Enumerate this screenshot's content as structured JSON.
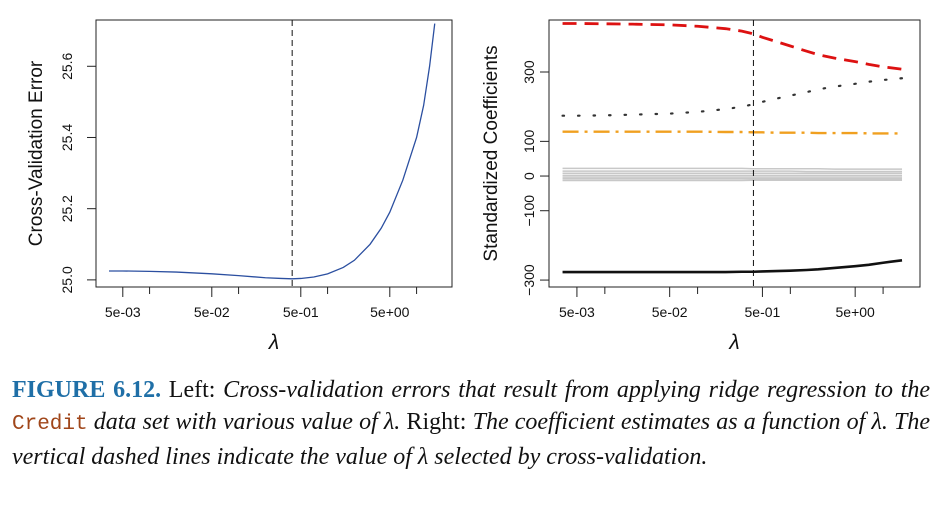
{
  "chart_data": [
    {
      "type": "line",
      "title": "",
      "xlabel": "λ",
      "ylabel": "Cross-Validation Error",
      "x_scale": "log",
      "xlim": [
        0.0025,
        25
      ],
      "ylim": [
        24.98,
        25.73
      ],
      "x_ticks": [
        {
          "value": 0.005,
          "label": "5e-03"
        },
        {
          "value": 0.05,
          "label": "5e-02"
        },
        {
          "value": 0.5,
          "label": "5e-01"
        },
        {
          "value": 5,
          "label": "5e+00"
        }
      ],
      "y_ticks": [
        {
          "value": 25.0,
          "label": "25.0"
        },
        {
          "value": 25.2,
          "label": "25.2"
        },
        {
          "value": 25.4,
          "label": "25.4"
        },
        {
          "value": 25.6,
          "label": "25.6"
        }
      ],
      "vline": {
        "x": 0.4,
        "style": "dashed"
      },
      "series": [
        {
          "color": "#2b4fa0",
          "style": "solid",
          "x": [
            0.0035,
            0.005,
            0.01,
            0.02,
            0.05,
            0.1,
            0.2,
            0.3,
            0.4,
            0.5,
            0.7,
            1.0,
            1.5,
            2.0,
            3.0,
            4.0,
            5.0,
            7.0,
            10.0,
            12.0,
            14.0,
            16.0
          ],
          "y": [
            25.025,
            25.025,
            25.024,
            25.022,
            25.017,
            25.012,
            25.006,
            25.004,
            25.003,
            25.004,
            25.008,
            25.017,
            25.035,
            25.055,
            25.1,
            25.145,
            25.19,
            25.28,
            25.4,
            25.49,
            25.6,
            25.72
          ]
        }
      ]
    },
    {
      "type": "line",
      "title": "",
      "xlabel": "λ",
      "ylabel": "Standardized Coefficients",
      "x_scale": "log",
      "xlim": [
        0.0025,
        25
      ],
      "ylim": [
        -320,
        450
      ],
      "x_ticks": [
        {
          "value": 0.005,
          "label": "5e-03"
        },
        {
          "value": 0.05,
          "label": "5e-02"
        },
        {
          "value": 0.5,
          "label": "5e-01"
        },
        {
          "value": 5,
          "label": "5e+00"
        }
      ],
      "y_ticks": [
        {
          "value": -300,
          "label": "−300"
        },
        {
          "value": -100,
          "label": "−100"
        },
        {
          "value": 0,
          "label": "0"
        },
        {
          "value": 100,
          "label": "100"
        },
        {
          "value": 300,
          "label": "300"
        }
      ],
      "vline": {
        "x": 0.4,
        "style": "dashed"
      },
      "x": [
        0.0035,
        0.005,
        0.01,
        0.02,
        0.05,
        0.1,
        0.2,
        0.3,
        0.4,
        0.5,
        0.7,
        1.0,
        1.5,
        2.0,
        3.0,
        5.0,
        7.0,
        10.0,
        16.0
      ],
      "series": [
        {
          "color": "#dd1111",
          "style": "dashed",
          "width": 2.8,
          "y": [
            440,
            440,
            439,
            438,
            436,
            432,
            425,
            418,
            410,
            400,
            388,
            375,
            360,
            350,
            340,
            330,
            322,
            315,
            308
          ]
        },
        {
          "color": "#333333",
          "style": "dotted",
          "width": 2.2,
          "y": [
            174,
            174,
            175,
            177,
            180,
            185,
            193,
            200,
            207,
            214,
            223,
            232,
            242,
            250,
            258,
            266,
            272,
            277,
            282
          ]
        },
        {
          "color": "#f0a020",
          "style": "dashdot",
          "width": 2.4,
          "y": [
            128,
            128,
            128,
            128,
            128,
            128,
            127,
            127,
            126,
            126,
            125,
            125,
            125,
            124,
            124,
            124,
            123,
            123,
            123
          ]
        },
        {
          "color": "#c8c8c8",
          "style": "solid",
          "width": 1.5,
          "y": [
            22,
            22,
            22,
            22,
            22,
            22,
            22,
            22,
            21,
            21,
            21,
            21,
            21,
            21,
            20,
            20,
            20,
            20,
            20
          ]
        },
        {
          "color": "#c8c8c8",
          "style": "solid",
          "width": 1.5,
          "y": [
            14,
            14,
            14,
            14,
            14,
            14,
            14,
            14,
            14,
            14,
            14,
            14,
            13,
            13,
            13,
            13,
            13,
            13,
            13
          ]
        },
        {
          "color": "#c8c8c8",
          "style": "solid",
          "width": 1.5,
          "y": [
            8,
            8,
            8,
            8,
            8,
            8,
            8,
            8,
            8,
            8,
            8,
            8,
            8,
            8,
            8,
            8,
            8,
            8,
            8
          ]
        },
        {
          "color": "#c8c8c8",
          "style": "solid",
          "width": 1.5,
          "y": [
            2,
            2,
            2,
            2,
            2,
            2,
            2,
            2,
            2,
            2,
            2,
            2,
            2,
            2,
            2,
            2,
            2,
            2,
            2
          ]
        },
        {
          "color": "#c8c8c8",
          "style": "solid",
          "width": 1.5,
          "y": [
            -3,
            -3,
            -3,
            -3,
            -3,
            -3,
            -3,
            -3,
            -3,
            -3,
            -3,
            -3,
            -3,
            -3,
            -3,
            -3,
            -3,
            -3,
            -3
          ]
        },
        {
          "color": "#c8c8c8",
          "style": "solid",
          "width": 1.5,
          "y": [
            -8,
            -8,
            -8,
            -8,
            -8,
            -8,
            -8,
            -8,
            -8,
            -8,
            -8,
            -8,
            -8,
            -8,
            -8,
            -8,
            -8,
            -8,
            -8
          ]
        },
        {
          "color": "#c8c8c8",
          "style": "solid",
          "width": 1.5,
          "y": [
            -13,
            -13,
            -13,
            -13,
            -13,
            -13,
            -13,
            -13,
            -12,
            -12,
            -12,
            -12,
            -12,
            -12,
            -12,
            -12,
            -12,
            -12,
            -12
          ]
        },
        {
          "color": "#111111",
          "style": "solid",
          "width": 2.6,
          "y": [
            -277,
            -277,
            -277,
            -277,
            -277,
            -277,
            -277,
            -276,
            -276,
            -275,
            -274,
            -273,
            -271,
            -269,
            -265,
            -260,
            -256,
            -250,
            -243
          ]
        }
      ]
    }
  ],
  "caption": {
    "figure_label": "FIGURE 6.12.",
    "p1": " Left: ",
    "p2": "Cross-validation errors that result from applying ridge regression to the ",
    "p3": "Credit",
    "p4": " data set with various value of λ.",
    "p5": " Right: ",
    "p6": "The coefficient estimates as a function of λ. The vertical dashed lines indicate the value of λ selected by cross-validation."
  }
}
